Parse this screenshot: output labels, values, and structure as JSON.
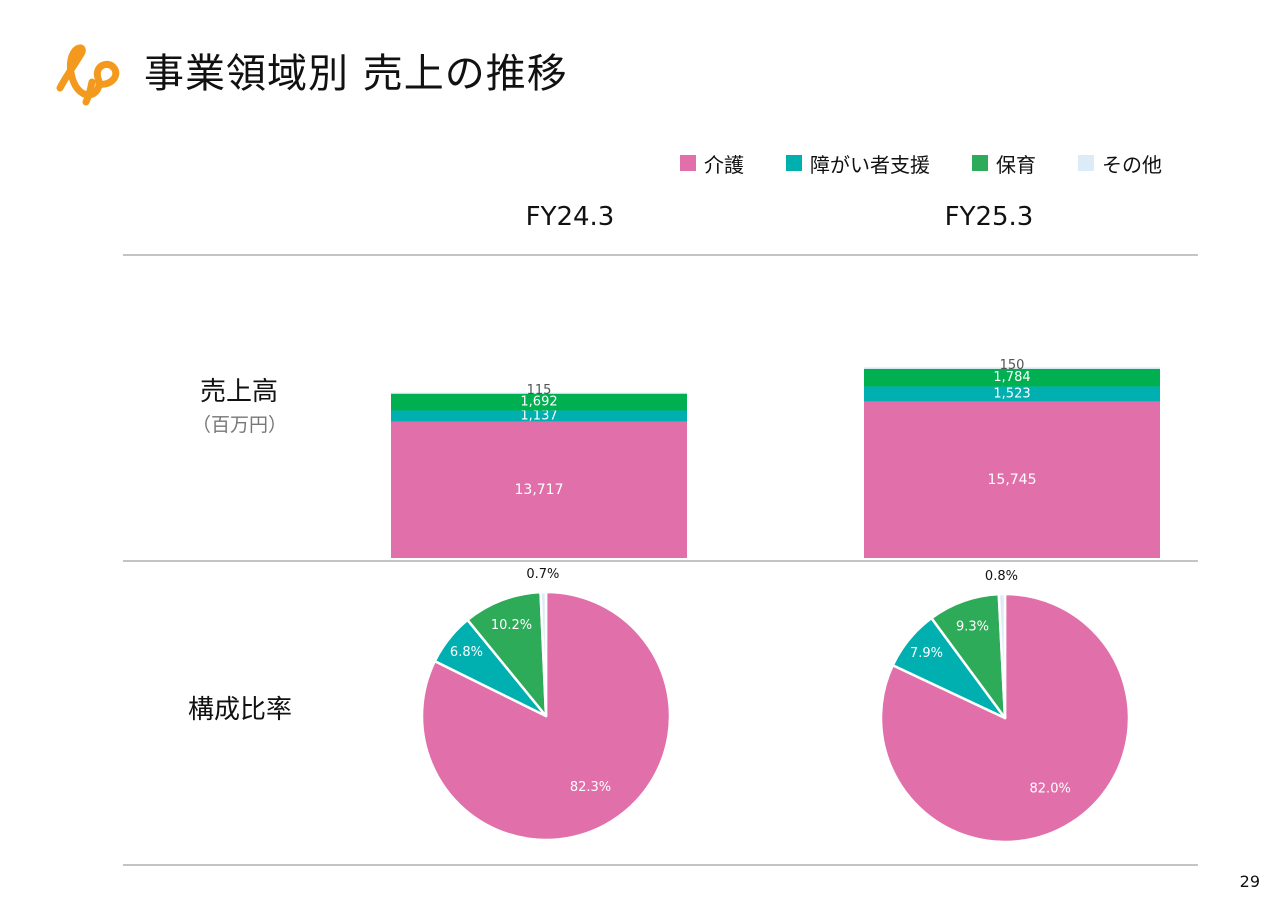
{
  "header": {
    "title": "事業領域別 売上の推移"
  },
  "legend": [
    {
      "label": "介護",
      "color": "#E170AA"
    },
    {
      "label": "障がい者支援",
      "color": "#00B0B0"
    },
    {
      "label": "保育",
      "color": "#2EAB58"
    },
    {
      "label": "その他",
      "color": "#DCEBF8"
    }
  ],
  "periods": [
    "FY24.3",
    "FY25.3"
  ],
  "rows": {
    "sales_label": "売上高",
    "sales_unit": "（百万円）",
    "ratio_label": "構成比率"
  },
  "page_number": "29",
  "chart_data": [
    {
      "type": "bar",
      "stacked": true,
      "categories": [
        "FY24.3",
        "FY25.3"
      ],
      "series": [
        {
          "name": "介護",
          "values": [
            13717,
            15745
          ],
          "labels": [
            "13,717",
            "15,745"
          ],
          "color": "#E170AA"
        },
        {
          "name": "障がい者支援",
          "values": [
            1137,
            1523
          ],
          "labels": [
            "1,137",
            "1,523"
          ],
          "color": "#00B0B0"
        },
        {
          "name": "保育",
          "values": [
            1692,
            1784
          ],
          "labels": [
            "1,692",
            "1,784"
          ],
          "color": "#00B050"
        },
        {
          "name": "その他",
          "values": [
            115,
            150
          ],
          "labels": [
            "115",
            "150"
          ],
          "color": "#DCEBF8"
        }
      ],
      "ylabel": "売上高",
      "unit": "（百万円）",
      "grid": false
    },
    {
      "type": "pie",
      "category": "FY24.3",
      "slices": [
        {
          "name": "介護",
          "value": 82.3,
          "label": "82.3%",
          "color": "#E170AA"
        },
        {
          "name": "障がい者支援",
          "value": 6.8,
          "label": "6.8%",
          "color": "#00B0B0"
        },
        {
          "name": "保育",
          "value": 10.2,
          "label": "10.2%",
          "color": "#2EAB58"
        },
        {
          "name": "その他",
          "value": 0.7,
          "label": "0.7%",
          "color": "#DCEBF8"
        }
      ]
    },
    {
      "type": "pie",
      "category": "FY25.3",
      "slices": [
        {
          "name": "介護",
          "value": 82.0,
          "label": "82.0%",
          "color": "#E170AA"
        },
        {
          "name": "障がい者支援",
          "value": 7.9,
          "label": "7.9%",
          "color": "#00B0B0"
        },
        {
          "name": "保育",
          "value": 9.3,
          "label": "9.3%",
          "color": "#2EAB58"
        },
        {
          "name": "その他",
          "value": 0.8,
          "label": "0.8%",
          "color": "#DCEBF8"
        }
      ]
    }
  ]
}
